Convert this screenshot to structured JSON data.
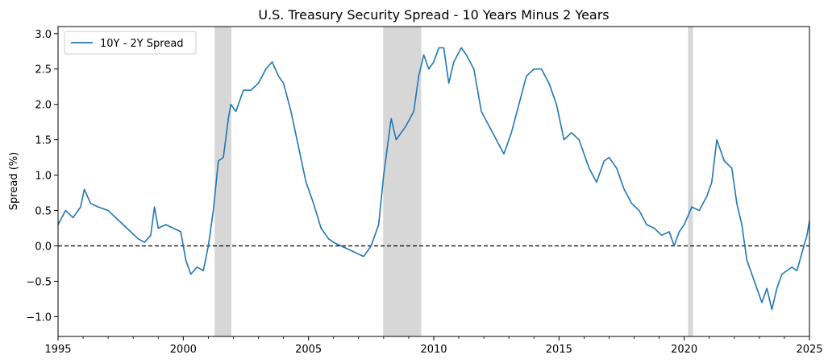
{
  "chart_data": {
    "type": "line",
    "title": "U.S. Treasury Security Spread - 10 Years Minus 2 Years",
    "xlabel": "",
    "ylabel": "Spread (%)",
    "xlim": [
      1995,
      2025
    ],
    "ylim": [
      -1.28,
      3.1
    ],
    "x_ticks": [
      1995,
      2000,
      2005,
      2010,
      2015,
      2020,
      2025
    ],
    "x_tick_labels": [
      "1995",
      "2000",
      "2005",
      "2010",
      "2015",
      "2020",
      "2025"
    ],
    "y_ticks": [
      -1.0,
      -0.5,
      0.0,
      0.5,
      1.0,
      1.5,
      2.0,
      2.5,
      3.0
    ],
    "y_tick_labels": [
      "−1.0",
      "−0.5",
      "0.0",
      "0.5",
      "1.0",
      "1.5",
      "2.0",
      "2.5",
      "3.0"
    ],
    "grid": false,
    "legend_position": "top-left",
    "recession_periods": [
      [
        2001.25,
        2001.92
      ],
      [
        2007.98,
        2009.5
      ],
      [
        2020.15,
        2020.35
      ]
    ],
    "reference_line": {
      "y": 0.0,
      "style": "dashed",
      "color": "#000000"
    },
    "colors": {
      "series": "#1f77b4",
      "recession": "#d3d3d3"
    },
    "series": [
      {
        "name": "10Y - 2Y Spread",
        "x": [
          1995.0,
          1995.3,
          1995.6,
          1995.9,
          1996.05,
          1996.3,
          1996.6,
          1997.0,
          1997.3,
          1997.6,
          1997.9,
          1998.2,
          1998.45,
          1998.7,
          1998.85,
          1999.0,
          1999.3,
          1999.6,
          1999.9,
          2000.1,
          2000.3,
          2000.55,
          2000.8,
          2001.0,
          2001.2,
          2001.4,
          2001.6,
          2001.8,
          2001.9,
          2002.1,
          2002.4,
          2002.7,
          2003.0,
          2003.3,
          2003.55,
          2003.8,
          2004.0,
          2004.3,
          2004.6,
          2004.9,
          2005.2,
          2005.5,
          2005.8,
          2006.0,
          2006.3,
          2006.6,
          2006.9,
          2007.2,
          2007.5,
          2007.8,
          2008.0,
          2008.3,
          2008.5,
          2008.7,
          2008.9,
          2009.2,
          2009.4,
          2009.6,
          2009.8,
          2010.0,
          2010.2,
          2010.4,
          2010.6,
          2010.8,
          2011.1,
          2011.3,
          2011.6,
          2011.9,
          2012.2,
          2012.5,
          2012.8,
          2013.1,
          2013.4,
          2013.7,
          2014.0,
          2014.3,
          2014.6,
          2014.9,
          2015.2,
          2015.5,
          2015.8,
          2016.2,
          2016.5,
          2016.8,
          2017.0,
          2017.3,
          2017.6,
          2017.9,
          2018.2,
          2018.5,
          2018.8,
          2019.1,
          2019.4,
          2019.6,
          2019.8,
          2020.0,
          2020.3,
          2020.6,
          2020.9,
          2021.1,
          2021.3,
          2021.6,
          2021.9,
          2022.1,
          2022.3,
          2022.5,
          2022.7,
          2022.9,
          2023.1,
          2023.3,
          2023.5,
          2023.7,
          2023.9,
          2024.1,
          2024.3,
          2024.5,
          2024.7,
          2024.9,
          2025.0
        ],
        "values": [
          0.3,
          0.5,
          0.4,
          0.55,
          0.8,
          0.6,
          0.55,
          0.5,
          0.4,
          0.3,
          0.2,
          0.1,
          0.05,
          0.15,
          0.55,
          0.25,
          0.3,
          0.25,
          0.2,
          -0.2,
          -0.4,
          -0.3,
          -0.35,
          0.0,
          0.5,
          1.2,
          1.25,
          1.8,
          2.0,
          1.9,
          2.2,
          2.2,
          2.3,
          2.5,
          2.6,
          2.4,
          2.3,
          1.9,
          1.4,
          0.9,
          0.6,
          0.25,
          0.1,
          0.05,
          0.0,
          -0.05,
          -0.1,
          -0.15,
          0.0,
          0.3,
          1.0,
          1.8,
          1.5,
          1.6,
          1.7,
          1.9,
          2.4,
          2.7,
          2.5,
          2.6,
          2.8,
          2.8,
          2.3,
          2.6,
          2.8,
          2.7,
          2.5,
          1.9,
          1.7,
          1.5,
          1.3,
          1.6,
          2.0,
          2.4,
          2.5,
          2.5,
          2.3,
          2.0,
          1.5,
          1.6,
          1.5,
          1.1,
          0.9,
          1.2,
          1.25,
          1.1,
          0.8,
          0.6,
          0.5,
          0.3,
          0.25,
          0.15,
          0.2,
          0.0,
          0.2,
          0.3,
          0.55,
          0.5,
          0.7,
          0.9,
          1.5,
          1.2,
          1.1,
          0.6,
          0.3,
          -0.2,
          -0.4,
          -0.6,
          -0.8,
          -0.6,
          -0.9,
          -0.6,
          -0.4,
          -0.35,
          -0.3,
          -0.35,
          -0.1,
          0.15,
          0.35
        ]
      }
    ]
  }
}
